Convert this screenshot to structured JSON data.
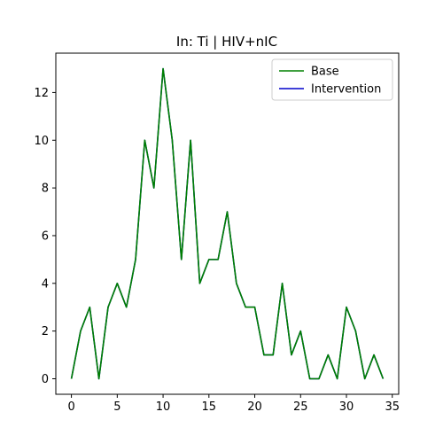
{
  "chart_data": {
    "type": "line",
    "title": "In: Ti | HIV+nIC",
    "xlabel": "",
    "ylabel": "",
    "xlim": [
      -1.7,
      35.7
    ],
    "ylim": [
      -0.65,
      13.65
    ],
    "xticks": [
      0,
      5,
      10,
      15,
      20,
      25,
      30,
      35
    ],
    "yticks": [
      0,
      2,
      4,
      6,
      8,
      10,
      12
    ],
    "grid": false,
    "legend_position": "top-right",
    "x": [
      0,
      1,
      2,
      3,
      4,
      5,
      6,
      7,
      8,
      9,
      10,
      11,
      12,
      13,
      14,
      15,
      16,
      17,
      18,
      19,
      20,
      21,
      22,
      23,
      24,
      25,
      26,
      27,
      28,
      29,
      30,
      31,
      32,
      33,
      34
    ],
    "series": [
      {
        "name": "Base",
        "color": "#008000",
        "values": [
          0,
          2,
          3,
          0,
          3,
          4,
          3,
          5,
          10,
          8,
          13,
          10,
          5,
          10,
          4,
          5,
          5,
          7,
          4,
          3,
          3,
          1,
          1,
          4,
          1,
          2,
          0,
          0,
          1,
          0,
          3,
          2,
          0,
          1,
          0
        ]
      },
      {
        "name": "Intervention",
        "color": "#0000cc",
        "values": [
          0,
          2,
          3,
          0,
          3,
          4,
          3,
          5,
          10,
          8,
          13,
          10,
          5,
          10,
          4,
          5,
          5,
          7,
          4,
          3,
          3,
          1,
          1,
          4,
          1,
          2,
          0,
          0,
          1,
          0,
          3,
          2,
          0,
          1,
          0
        ]
      }
    ]
  }
}
